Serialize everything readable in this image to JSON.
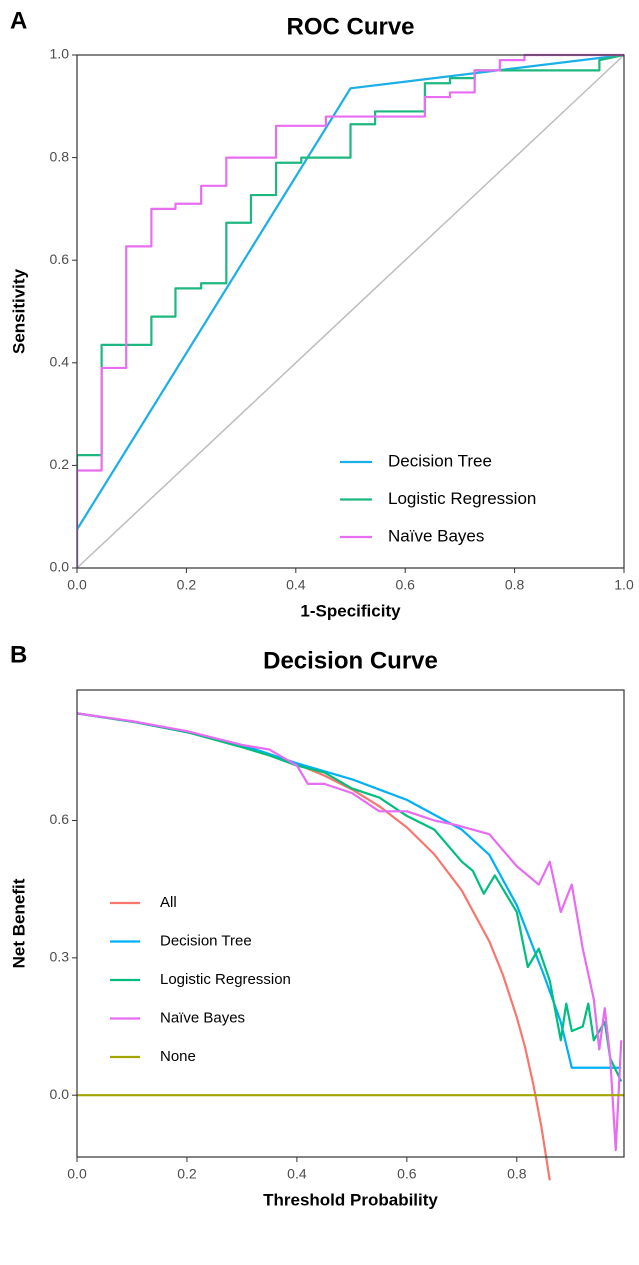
{
  "chart_data": [
    {
      "type": "line",
      "panel": "A",
      "title": "ROC Curve",
      "xlabel": "1-Specificity",
      "ylabel": "Sensitivity",
      "xlim": [
        0,
        1
      ],
      "ylim": [
        0,
        1
      ],
      "xticks": [
        {
          "value": 0,
          "label": "0.0"
        },
        0.2,
        0.4,
        0.6,
        0.8,
        {
          "value": 1,
          "label": "1.0"
        }
      ],
      "yticks": [
        {
          "value": 0,
          "label": "0.0"
        },
        0.2,
        0.4,
        0.6,
        0.8,
        {
          "value": 1,
          "label": "1.0"
        }
      ],
      "grid": false,
      "legend": "bottom-right",
      "reference_diagonal": true,
      "series": [
        {
          "name": "Decision Tree",
          "color": "#1aafe6",
          "x": [
            0,
            0,
            0.5,
            1
          ],
          "values": [
            0,
            0.075,
            0.935,
            1
          ]
        },
        {
          "name": "Logistic Regression",
          "color": "#1db87f",
          "x": [
            0,
            0,
            0.045,
            0.045,
            0.09,
            0.09,
            0.136,
            0.136,
            0.18,
            0.18,
            0.227,
            0.227,
            0.273,
            0.273,
            0.318,
            0.318,
            0.364,
            0.364,
            0.41,
            0.41,
            0.5,
            0.5,
            0.545,
            0.545,
            0.636,
            0.636,
            0.682,
            0.682,
            0.727,
            0.727,
            0.955,
            0.955,
            1
          ],
          "values": [
            0,
            0.22,
            0.22,
            0.435,
            0.435,
            0.435,
            0.435,
            0.49,
            0.49,
            0.545,
            0.545,
            0.555,
            0.555,
            0.673,
            0.673,
            0.727,
            0.727,
            0.79,
            0.79,
            0.8,
            0.8,
            0.865,
            0.865,
            0.89,
            0.89,
            0.945,
            0.945,
            0.955,
            0.955,
            0.97,
            0.97,
            0.99,
            1
          ]
        },
        {
          "name": "Naïve Bayes",
          "color": "#e86df0",
          "x": [
            0,
            0,
            0.045,
            0.045,
            0.09,
            0.09,
            0.136,
            0.136,
            0.18,
            0.18,
            0.227,
            0.227,
            0.273,
            0.273,
            0.364,
            0.364,
            0.455,
            0.455,
            0.636,
            0.636,
            0.682,
            0.682,
            0.727,
            0.727,
            0.773,
            0.773,
            0.818,
            0.818,
            1
          ],
          "values": [
            0,
            0.19,
            0.19,
            0.39,
            0.39,
            0.627,
            0.627,
            0.7,
            0.7,
            0.71,
            0.71,
            0.745,
            0.745,
            0.8,
            0.8,
            0.862,
            0.862,
            0.88,
            0.88,
            0.918,
            0.918,
            0.927,
            0.927,
            0.97,
            0.97,
            0.99,
            0.99,
            1,
            1
          ]
        }
      ]
    },
    {
      "type": "line",
      "panel": "B",
      "title": "Decision Curve",
      "xlabel": "Threshold Probability",
      "ylabel": "Net Benefit",
      "xlim": [
        0,
        0.995
      ],
      "ylim": [
        -0.135,
        0.885
      ],
      "xticks": [
        {
          "value": 0,
          "label": "0.0"
        },
        0.2,
        0.4,
        0.6,
        0.8
      ],
      "yticks": [
        {
          "value": 0,
          "label": "0.0"
        },
        0.3,
        0.6
      ],
      "grid": false,
      "legend": "left",
      "series": [
        {
          "name": "All",
          "color": "#f8766d",
          "x": [
            0,
            0.05,
            0.1,
            0.15,
            0.2,
            0.25,
            0.3,
            0.35,
            0.4,
            0.45,
            0.5,
            0.55,
            0.6,
            0.65,
            0.7,
            0.75,
            0.775,
            0.8,
            0.815,
            0.83,
            0.845,
            0.86
          ],
          "values": [
            0.834,
            0.825,
            0.816,
            0.805,
            0.793,
            0.779,
            0.763,
            0.745,
            0.723,
            0.698,
            0.668,
            0.631,
            0.585,
            0.526,
            0.447,
            0.336,
            0.262,
            0.17,
            0.105,
            0.024,
            -0.071,
            -0.186
          ]
        },
        {
          "name": "Decision Tree",
          "color": "#00b0f6",
          "x": [
            0,
            0.1,
            0.2,
            0.3,
            0.4,
            0.5,
            0.6,
            0.7,
            0.75,
            0.8,
            0.85,
            0.88,
            0.9,
            0.99
          ],
          "values": [
            0.834,
            0.816,
            0.793,
            0.765,
            0.725,
            0.69,
            0.645,
            0.58,
            0.525,
            0.415,
            0.26,
            0.16,
            0.06,
            0.06
          ]
        },
        {
          "name": "Logistic Regression",
          "color": "#00bf7d",
          "x": [
            0,
            0.1,
            0.2,
            0.3,
            0.35,
            0.4,
            0.45,
            0.5,
            0.55,
            0.6,
            0.65,
            0.7,
            0.72,
            0.74,
            0.76,
            0.8,
            0.82,
            0.84,
            0.86,
            0.88,
            0.89,
            0.9,
            0.92,
            0.93,
            0.94,
            0.96,
            0.97,
            0.99
          ],
          "values": [
            0.834,
            0.816,
            0.793,
            0.76,
            0.742,
            0.72,
            0.705,
            0.67,
            0.65,
            0.61,
            0.58,
            0.51,
            0.49,
            0.44,
            0.48,
            0.4,
            0.28,
            0.32,
            0.25,
            0.12,
            0.2,
            0.14,
            0.15,
            0.2,
            0.12,
            0.16,
            0.08,
            0.03
          ]
        },
        {
          "name": "Naïve Bayes",
          "color": "#e76bf3",
          "x": [
            0,
            0.1,
            0.2,
            0.3,
            0.35,
            0.4,
            0.42,
            0.45,
            0.5,
            0.55,
            0.6,
            0.65,
            0.69,
            0.75,
            0.8,
            0.84,
            0.86,
            0.88,
            0.9,
            0.92,
            0.94,
            0.95,
            0.96,
            0.97,
            0.98,
            0.99
          ],
          "values": [
            0.834,
            0.817,
            0.795,
            0.765,
            0.755,
            0.72,
            0.68,
            0.68,
            0.66,
            0.62,
            0.62,
            0.6,
            0.59,
            0.57,
            0.5,
            0.46,
            0.51,
            0.4,
            0.46,
            0.32,
            0.21,
            0.1,
            0.19,
            0.08,
            -0.12,
            0.12
          ]
        },
        {
          "name": "None",
          "color": "#a3a500",
          "x": [
            0,
            0.995
          ],
          "values": [
            0,
            0
          ]
        }
      ]
    }
  ]
}
